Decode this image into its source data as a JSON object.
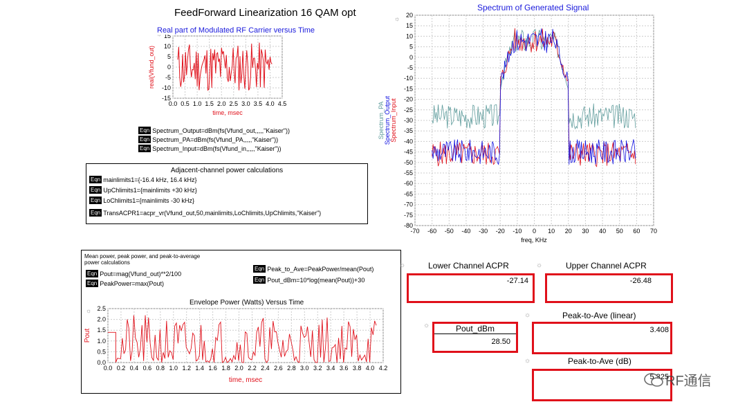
{
  "page_title": "FeedForward Linearization 16 QAM opt",
  "charts": {
    "carrier": {
      "title": "Real part of Modulated RF Carrier versus Time",
      "xlabel": "time, msec",
      "ylabel": "real(Vfund_out)",
      "ylim": [
        -15,
        15
      ],
      "xlim": [
        0,
        4.5
      ],
      "yticks": [
        15,
        10,
        5,
        0,
        -5,
        -10,
        -15
      ],
      "xticks": [
        "0.0",
        "0.5",
        "1.0",
        "1.5",
        "2.0",
        "2.5",
        "3.0",
        "3.5",
        "4.0",
        "4.5"
      ]
    },
    "spectrum": {
      "title": "Spectrum of Generated Signal",
      "xlabel": "freq, KHz",
      "ylabel_pa": "Spectrum_PA",
      "ylabel_output": "Spectrum_Output",
      "ylabel_input": "Spectrum_Input",
      "ylim": [
        -80,
        20
      ],
      "xlim": [
        -70,
        70
      ],
      "yticks": [
        "20",
        "15",
        "10",
        "5",
        "0",
        "-5",
        "-10",
        "-15",
        "-20",
        "-25",
        "-30",
        "-35",
        "-40",
        "-45",
        "-50",
        "-55",
        "-60",
        "-65",
        "-70",
        "-75",
        "-80"
      ],
      "xticks": [
        "-70",
        "-60",
        "-50",
        "-40",
        "-30",
        "-20",
        "-10",
        "0",
        "10",
        "20",
        "30",
        "40",
        "50",
        "60",
        "70"
      ]
    },
    "envelope": {
      "title": "Envelope Power (Watts) Versus Time",
      "xlabel": "time, msec",
      "ylabel": "Pout",
      "ylim": [
        0,
        2.5
      ],
      "xlim": [
        0,
        4.2
      ],
      "yticks": [
        "2.5",
        "2.0",
        "1.5",
        "1.0",
        "0.5",
        "0.0"
      ],
      "xticks": [
        "0.0",
        "0.2",
        "0.4",
        "0.6",
        "0.8",
        "1.0",
        "1.2",
        "1.4",
        "1.6",
        "1.8",
        "2.0",
        "2.2",
        "2.4",
        "2.6",
        "2.8",
        "3.0",
        "3.2",
        "3.4",
        "3.6",
        "3.8",
        "4.0",
        "4.2"
      ]
    }
  },
  "equations": {
    "tag": "Eqn",
    "spectrum": [
      "Spectrum_Output=dBm(fs(Vfund_out,,,,,\"Kaiser\"))",
      "Spectrum_PA=dBm(fs(Vfund_PA,,,,,\"Kaiser\"))",
      "Spectrum_Input=dBm(fs(Vfund_in,,,,,\"Kaiser\"))"
    ],
    "acpr_title": "Adjacent-channel power calculations",
    "acpr": [
      "mainlimits1={-16.4 kHz, 16.4 kHz}",
      "UpChlimits1={mainlimits +30 kHz}",
      "LoChlimits1={mainlimits -30 kHz}",
      "TransACPR1=acpr_vr(Vfund_out,50,mainlimits,LoChlimits,UpChlimits,\"Kaiser\")"
    ],
    "power_title_1": "Mean power, peak power, and peak-to-average",
    "power_title_2": "power calculations",
    "power_left": [
      "Pout=mag(Vfund_out)**2/100",
      "PeakPower=max(Pout)"
    ],
    "power_right": [
      "Peak_to_Ave=PeakPower/mean(Pout)",
      "Pout_dBm=10*log(mean(Pout))+30"
    ]
  },
  "results": {
    "lower_acpr": {
      "label": "Lower Channel ACPR",
      "value": "-27.14"
    },
    "upper_acpr": {
      "label": "Upper Channel ACPR",
      "value": "-26.48"
    },
    "pout_dbm": {
      "label": "Pout_dBm",
      "value": "28.50"
    },
    "peak_ave_lin": {
      "label": "Peak-to-Ave (linear)",
      "value": "3.408"
    },
    "peak_ave_db": {
      "label": "Peak-to-Ave (dB)",
      "value": "5.325"
    }
  },
  "watermark": "RF通信",
  "colors": {
    "red": "#e0101a",
    "blue": "#1010e0",
    "gray": "#5f9c9c",
    "title_blue": "#1a1adc"
  }
}
